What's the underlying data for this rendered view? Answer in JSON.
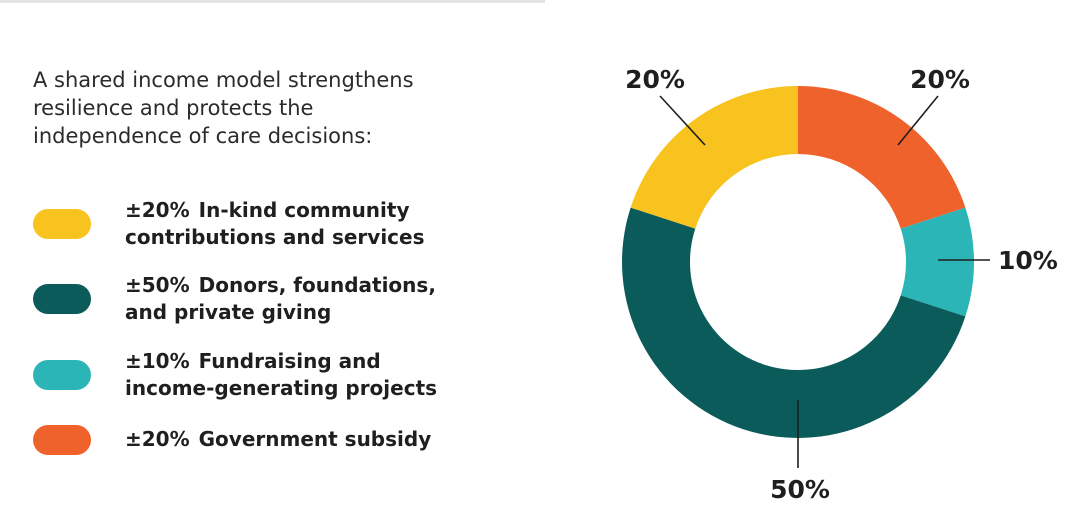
{
  "intro_lines": [
    "A shared income model strengthens",
    "resilience and protects the",
    "independence of care decisions:"
  ],
  "legend": [
    {
      "pct": "±20%",
      "line1": "In-kind community",
      "line2": "contributions and services",
      "color": "#f8c21f"
    },
    {
      "pct": "±50%",
      "line1": "Donors, foundations,",
      "line2": "and private giving",
      "color": "#0b5b5b"
    },
    {
      "pct": "±10%",
      "line1": "Fundraising and",
      "line2": "income-generating projects",
      "color": "#2cb5b7"
    },
    {
      "pct": "±20%",
      "line1": "Government subsidy",
      "line2": "",
      "color": "#f0622b"
    }
  ],
  "chart_data": {
    "type": "pie",
    "donut": true,
    "slices": [
      {
        "name": "Government subsidy",
        "value": 20,
        "label": "20%",
        "color": "#f0622b"
      },
      {
        "name": "Fundraising and income-generating projects",
        "value": 10,
        "label": "10%",
        "color": "#2cb5b7"
      },
      {
        "name": "Donors, foundations, and private giving",
        "value": 50,
        "label": "50%",
        "color": "#0b5b5b"
      },
      {
        "name": "In-kind community contributions and services",
        "value": 20,
        "label": "20%",
        "color": "#f8c21f"
      }
    ],
    "start": "12 o'clock",
    "direction": "clockwise"
  }
}
